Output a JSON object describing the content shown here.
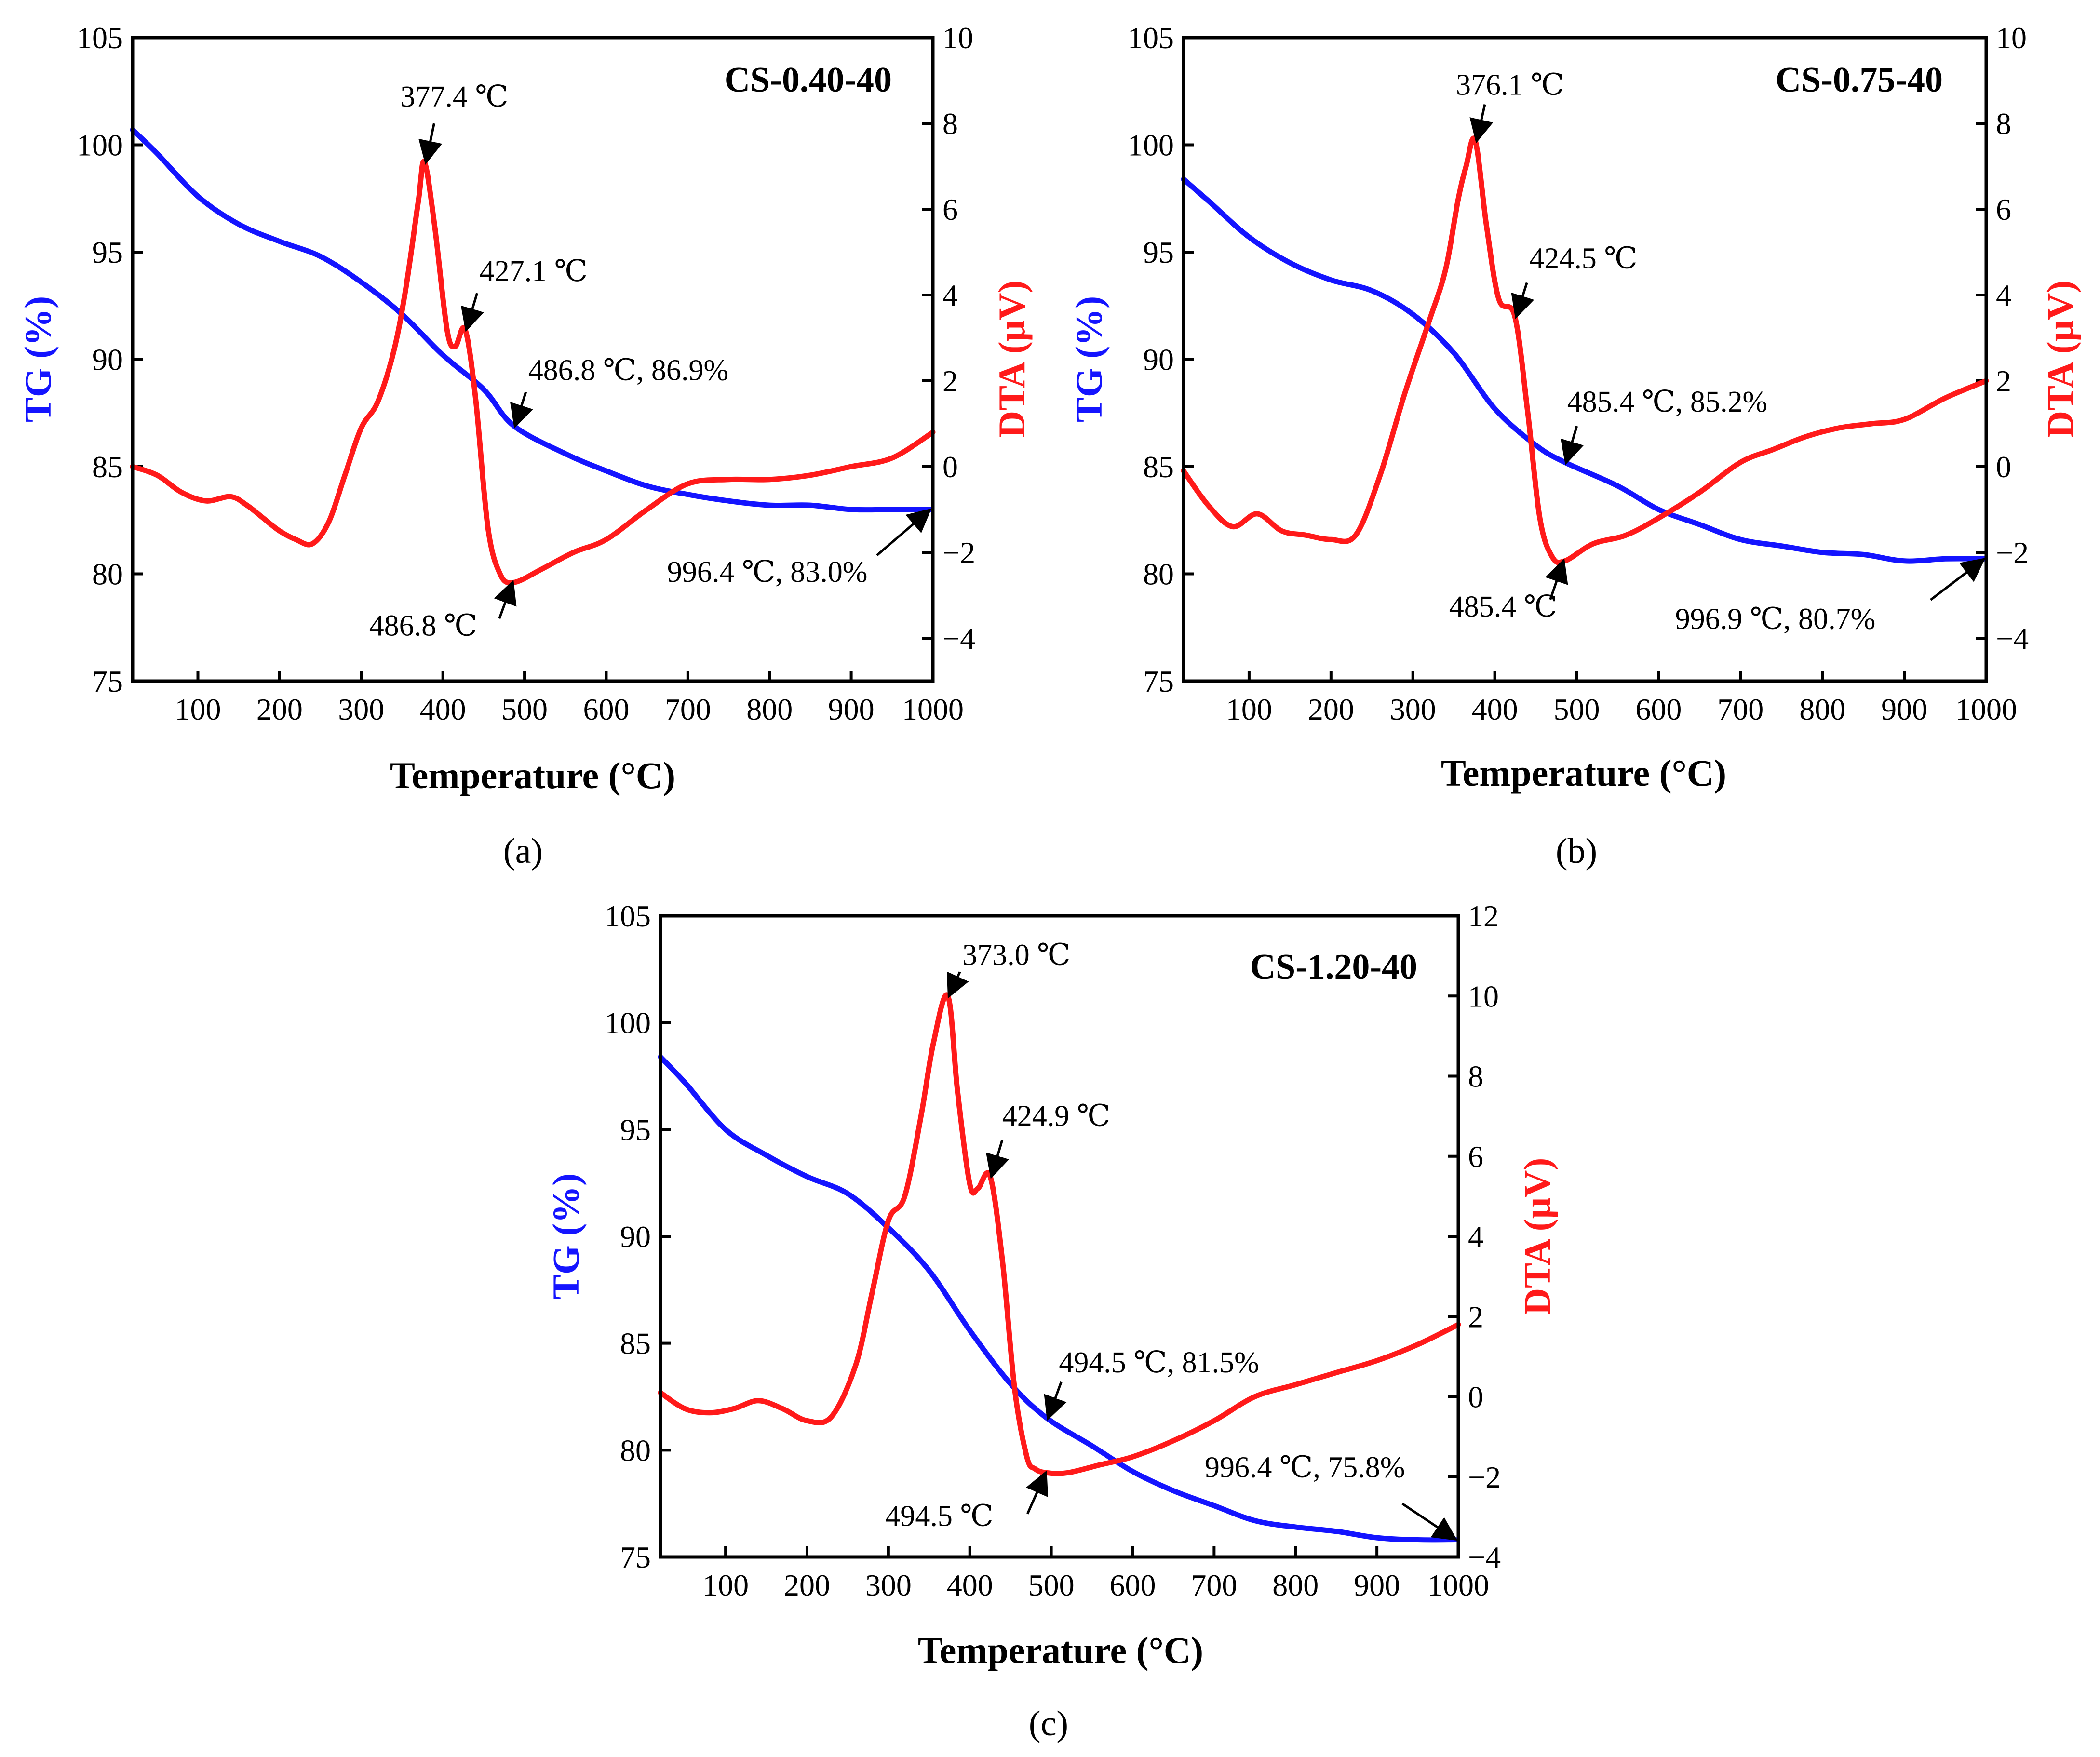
{
  "chart_data": [
    {
      "type": "line",
      "panel_label": "(a)",
      "title": "CS-0.40-40",
      "xlabel": "Temperature (°C)",
      "ylabel_left": "TG (%)",
      "ylabel_right": "DTA (μV)",
      "xlim": [
        20,
        1000
      ],
      "ylim_left": [
        75,
        105
      ],
      "ylim_right": [
        -5,
        10
      ],
      "xticks": [
        100,
        200,
        300,
        400,
        500,
        600,
        700,
        800,
        900,
        1000
      ],
      "yticks_left": [
        75,
        80,
        85,
        90,
        95,
        100,
        105
      ],
      "yticks_right": [
        -4,
        -2,
        0,
        2,
        4,
        6,
        8,
        10
      ],
      "colors": {
        "tg": "#1414ff",
        "dta": "#ff1a1a",
        "axis": "#000000"
      },
      "series": [
        {
          "name": "TG",
          "axis": "left",
          "x": [
            20,
            50,
            100,
            150,
            200,
            250,
            300,
            350,
            400,
            450,
            486.8,
            550,
            600,
            650,
            700,
            750,
            800,
            850,
            900,
            950,
            996.4
          ],
          "y": [
            100.7,
            99.6,
            97.6,
            96.3,
            95.5,
            94.8,
            93.6,
            92.1,
            90.2,
            88.6,
            86.9,
            85.6,
            84.8,
            84.1,
            83.7,
            83.4,
            83.2,
            83.2,
            83.0,
            83.0,
            83.0
          ]
        },
        {
          "name": "DTA",
          "axis": "right",
          "x": [
            20,
            50,
            80,
            110,
            140,
            160,
            180,
            200,
            220,
            240,
            260,
            280,
            300,
            320,
            340,
            355,
            370,
            377.4,
            390,
            405,
            415,
            427.1,
            440,
            455,
            470,
            486.8,
            520,
            560,
            600,
            650,
            700,
            750,
            800,
            850,
            900,
            950,
            1000
          ],
          "y": [
            0,
            -0.2,
            -0.6,
            -0.8,
            -0.7,
            -0.9,
            -1.2,
            -1.5,
            -1.7,
            -1.8,
            -1.3,
            -0.2,
            0.9,
            1.5,
            2.7,
            4.2,
            6.2,
            7.1,
            5.6,
            3.2,
            2.8,
            3.2,
            1.6,
            -1.4,
            -2.5,
            -2.7,
            -2.4,
            -2.0,
            -1.7,
            -1.0,
            -0.4,
            -0.3,
            -0.3,
            -0.2,
            0.0,
            0.2,
            0.8
          ]
        }
      ],
      "annotations": [
        {
          "text": "377.4 ℃",
          "x": 377.4,
          "y": 7.1,
          "axis": "right"
        },
        {
          "text": "427.1 ℃",
          "x": 427.1,
          "y": 3.2,
          "axis": "right"
        },
        {
          "text": "486.8 ℃, 86.9%",
          "x": 486.8,
          "y": 86.9,
          "axis": "left"
        },
        {
          "text": "486.8 ℃",
          "x": 486.8,
          "y": -2.7,
          "axis": "right"
        },
        {
          "text": "996.4 ℃, 83.0%",
          "x": 996.4,
          "y": 83.0,
          "axis": "left"
        }
      ]
    },
    {
      "type": "line",
      "panel_label": "(b)",
      "title": "CS-0.75-40",
      "xlabel": "Temperature (°C)",
      "ylabel_left": "TG (%)",
      "ylabel_right": "DTA (μV)",
      "xlim": [
        20,
        1000
      ],
      "ylim_left": [
        75,
        105
      ],
      "ylim_right": [
        -5,
        10
      ],
      "xticks": [
        100,
        200,
        300,
        400,
        500,
        600,
        700,
        800,
        900,
        1000
      ],
      "yticks_left": [
        75,
        80,
        85,
        90,
        95,
        100,
        105
      ],
      "yticks_right": [
        -4,
        -2,
        0,
        2,
        4,
        6,
        8,
        10
      ],
      "colors": {
        "tg": "#1414ff",
        "dta": "#ff1a1a",
        "axis": "#000000"
      },
      "series": [
        {
          "name": "TG",
          "axis": "left",
          "x": [
            20,
            50,
            100,
            150,
            200,
            250,
            300,
            350,
            400,
            450,
            485.4,
            550,
            600,
            650,
            700,
            750,
            800,
            850,
            900,
            950,
            996.9
          ],
          "y": [
            98.4,
            97.4,
            95.7,
            94.5,
            93.7,
            93.2,
            92.1,
            90.3,
            87.7,
            86.0,
            85.2,
            84.1,
            83.0,
            82.3,
            81.6,
            81.3,
            81.0,
            80.9,
            80.6,
            80.7,
            80.7
          ]
        },
        {
          "name": "DTA",
          "axis": "right",
          "x": [
            20,
            50,
            80,
            110,
            140,
            170,
            200,
            230,
            260,
            290,
            320,
            340,
            355,
            365,
            376.1,
            390,
            405,
            424.5,
            440,
            455,
            470,
            485.4,
            520,
            560,
            600,
            650,
            700,
            740,
            780,
            820,
            860,
            900,
            950,
            1000
          ],
          "y": [
            -0.1,
            -0.9,
            -1.4,
            -1.1,
            -1.5,
            -1.6,
            -1.7,
            -1.6,
            -0.2,
            1.7,
            3.4,
            4.6,
            6.2,
            7.0,
            7.6,
            5.6,
            3.9,
            3.5,
            1.3,
            -1.2,
            -2.1,
            -2.2,
            -1.8,
            -1.6,
            -1.2,
            -0.6,
            0.1,
            0.4,
            0.7,
            0.9,
            1.0,
            1.1,
            1.6,
            2.0
          ]
        }
      ],
      "annotations": [
        {
          "text": "376.1 ℃",
          "x": 376.1,
          "y": 7.6,
          "axis": "right"
        },
        {
          "text": "424.5 ℃",
          "x": 424.5,
          "y": 3.5,
          "axis": "right"
        },
        {
          "text": "485.4 ℃, 85.2%",
          "x": 485.4,
          "y": 85.2,
          "axis": "left"
        },
        {
          "text": "485.4 ℃",
          "x": 485.4,
          "y": -2.2,
          "axis": "right"
        },
        {
          "text": "996.9 ℃, 80.7%",
          "x": 996.9,
          "y": 80.7,
          "axis": "left"
        }
      ]
    },
    {
      "type": "line",
      "panel_label": "(c)",
      "title": "CS-1.20-40",
      "xlabel": "Temperature (°C)",
      "ylabel_left": "TG (%)",
      "ylabel_right": "DTA (μV)",
      "xlim": [
        20,
        1000
      ],
      "ylim_left": [
        75,
        105
      ],
      "ylim_right": [
        -4,
        12
      ],
      "xticks": [
        100,
        200,
        300,
        400,
        500,
        600,
        700,
        800,
        900,
        1000
      ],
      "yticks_left": [
        75,
        80,
        85,
        90,
        95,
        100,
        105
      ],
      "yticks_right": [
        -4,
        -2,
        0,
        2,
        4,
        6,
        8,
        10,
        12
      ],
      "colors": {
        "tg": "#1414ff",
        "dta": "#ff1a1a",
        "axis": "#000000"
      },
      "series": [
        {
          "name": "TG",
          "axis": "left",
          "x": [
            20,
            50,
            100,
            150,
            200,
            250,
            300,
            350,
            400,
            450,
            494.5,
            550,
            600,
            650,
            700,
            750,
            800,
            850,
            900,
            950,
            996.4
          ],
          "y": [
            98.4,
            97.2,
            95.0,
            93.8,
            92.8,
            92.0,
            90.4,
            88.4,
            85.6,
            83.1,
            81.5,
            80.2,
            79.0,
            78.1,
            77.4,
            76.7,
            76.4,
            76.2,
            75.9,
            75.8,
            75.8
          ]
        },
        {
          "name": "DTA",
          "axis": "right",
          "x": [
            20,
            50,
            80,
            110,
            140,
            170,
            200,
            230,
            260,
            280,
            300,
            320,
            340,
            355,
            373.0,
            385,
            400,
            410,
            424.9,
            440,
            455,
            470,
            480,
            494.5,
            520,
            560,
            600,
            650,
            700,
            750,
            800,
            850,
            900,
            950,
            1000
          ],
          "y": [
            0.1,
            -0.3,
            -0.4,
            -0.3,
            -0.1,
            -0.3,
            -0.6,
            -0.5,
            0.8,
            2.6,
            4.4,
            5.0,
            7.0,
            8.8,
            10.0,
            7.6,
            5.3,
            5.2,
            5.5,
            3.4,
            0.2,
            -1.5,
            -1.8,
            -1.9,
            -1.9,
            -1.7,
            -1.5,
            -1.1,
            -0.6,
            0.0,
            0.3,
            0.6,
            0.9,
            1.3,
            1.8
          ]
        }
      ],
      "annotations": [
        {
          "text": "373.0 ℃",
          "x": 373.0,
          "y": 10.0,
          "axis": "right"
        },
        {
          "text": "424.9 ℃",
          "x": 424.9,
          "y": 5.5,
          "axis": "right"
        },
        {
          "text": "494.5 ℃, 81.5%",
          "x": 494.5,
          "y": 81.5,
          "axis": "left"
        },
        {
          "text": "494.5 ℃",
          "x": 494.5,
          "y": -1.9,
          "axis": "right"
        },
        {
          "text": "996.4 ℃, 75.8%",
          "x": 996.4,
          "y": 75.8,
          "axis": "left"
        }
      ]
    }
  ]
}
